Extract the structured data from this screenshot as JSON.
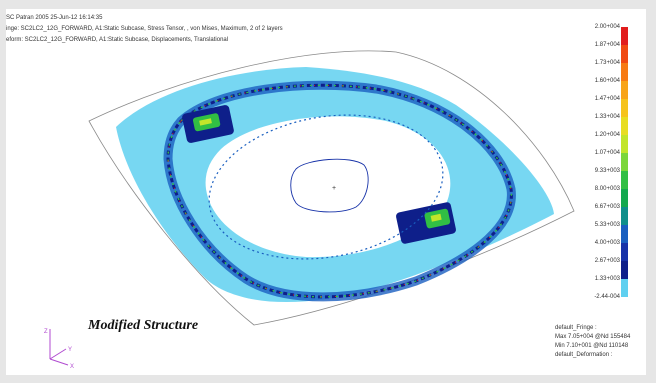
{
  "header": {
    "line1": "SC Patran 2005 25-Jun-12 16:14:35",
    "line2": "inge: SC2LC2_12G_FORWARD, A1:Static Subcase, Stress Tensor, , von Mises, Maximum, 2 of 2 layers",
    "line3": "eform: SC2LC2_12G_FORWARD, A1:Static Subcase, Displacements, Translational"
  },
  "caption": "Modified Structure",
  "legend": {
    "ticks": [
      "2.00+004",
      "1.87+004",
      "1.73+004",
      "1.60+004",
      "1.47+004",
      "1.33+004",
      "1.20+004",
      "1.07+004",
      "9.33+003",
      "8.00+003",
      "6.67+003",
      "5.33+003",
      "4.00+003",
      "2.67+003",
      "1.33+003",
      "-2.44-004"
    ],
    "colors": [
      "#e11d1d",
      "#f04a12",
      "#f77a13",
      "#f8a419",
      "#f6c31c",
      "#e8dd22",
      "#c2e52a",
      "#7bd63a",
      "#31bf44",
      "#13a84e",
      "#0f8f8b",
      "#1a5fc0",
      "#1732a8",
      "#0e1f8a",
      "#5fd0f0",
      "#ffffff"
    ]
  },
  "footer": {
    "line1": "default_Fringe :",
    "line2": "Max 7.05+004 @Nd 155484",
    "line3": "Min 7.10+001 @Nd 110148",
    "line4": "default_Deformation :"
  },
  "axes_labels": {
    "z": "Z",
    "y": "Y",
    "x": "X"
  },
  "colors": {
    "light_cyan": "#5fd0f0",
    "mid_blue": "#1a5fc0",
    "dark_blue": "#0e1f8a",
    "green": "#31bf44",
    "red": "#e11d1d",
    "grid": "#7a7a7a"
  }
}
